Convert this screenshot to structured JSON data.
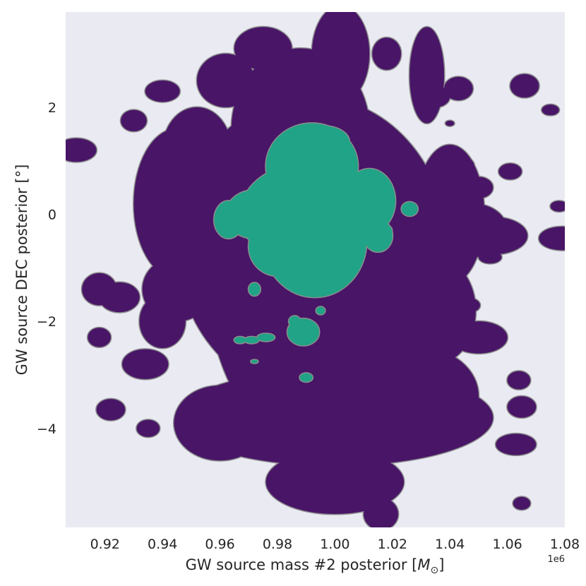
{
  "chart_data": {
    "type": "contour",
    "xlabel": "GW source mass #2 posterior [",
    "xlabel_math": "M",
    "xlabel_sub": "⊙",
    "xlabel_end": "]",
    "ylabel": "GW source DEC posterior [°]",
    "x_offset_text": "1e6",
    "xlim": [
      0.9063,
      1.08
    ],
    "ylim": [
      -5.85,
      3.78
    ],
    "x_scale_factor": 1000000,
    "x_ticks": [
      0.92,
      0.94,
      0.96,
      0.98,
      1.0,
      1.02,
      1.04,
      1.06,
      1.08
    ],
    "x_tick_labels": [
      "0.92",
      "0.94",
      "0.96",
      "0.98",
      "1.00",
      "1.02",
      "1.04",
      "1.06",
      "1.08"
    ],
    "y_ticks": [
      -4,
      -2,
      0,
      2
    ],
    "y_tick_labels": [
      "−4",
      "−2",
      "0",
      "2"
    ],
    "grid": false,
    "legend": "none",
    "colors": {
      "background": "#eaeaf2",
      "outer_level": "#481567",
      "inner_level": "#20a386",
      "contour_edge": "#8c8c8c"
    },
    "levels": [
      {
        "name": "outer",
        "blobs": [
          {
            "x": 0.992,
            "y": -1.0,
            "rx": 0.037,
            "ry": 3.4
          },
          {
            "x": 0.992,
            "y": -0.6,
            "rx": 0.047,
            "ry": 2.8
          },
          {
            "x": 0.988,
            "y": 1.6,
            "rx": 0.024,
            "ry": 1.5
          },
          {
            "x": 1.002,
            "y": 3.0,
            "rx": 0.01,
            "ry": 0.9
          },
          {
            "x": 1.0,
            "y": -3.8,
            "rx": 0.055,
            "ry": 0.9
          },
          {
            "x": 0.96,
            "y": -3.9,
            "rx": 0.016,
            "ry": 0.7
          },
          {
            "x": 1.03,
            "y": -3.4,
            "rx": 0.02,
            "ry": 0.9
          },
          {
            "x": 0.945,
            "y": 0.2,
            "rx": 0.015,
            "ry": 1.4
          },
          {
            "x": 0.952,
            "y": 1.2,
            "rx": 0.012,
            "ry": 0.8
          },
          {
            "x": 0.945,
            "y": -1.4,
            "rx": 0.012,
            "ry": 0.6
          },
          {
            "x": 0.94,
            "y": -2.0,
            "rx": 0.008,
            "ry": 0.5
          },
          {
            "x": 1.04,
            "y": 0.0,
            "rx": 0.012,
            "ry": 1.3
          },
          {
            "x": 1.048,
            "y": -0.3,
            "rx": 0.012,
            "ry": 0.5
          },
          {
            "x": 1.055,
            "y": -0.4,
            "rx": 0.012,
            "ry": 0.35
          },
          {
            "x": 1.035,
            "y": -1.8,
            "rx": 0.014,
            "ry": 1.0
          },
          {
            "x": 1.032,
            "y": 2.6,
            "rx": 0.006,
            "ry": 0.9
          },
          {
            "x": 0.962,
            "y": 2.5,
            "rx": 0.01,
            "ry": 0.5
          },
          {
            "x": 0.975,
            "y": 3.1,
            "rx": 0.01,
            "ry": 0.4
          },
          {
            "x": 1.0,
            "y": -5.0,
            "rx": 0.024,
            "ry": 0.6
          },
          {
            "x": 0.925,
            "y": -1.55,
            "rx": 0.007,
            "ry": 0.28
          },
          {
            "x": 0.918,
            "y": -1.4,
            "rx": 0.006,
            "ry": 0.3
          },
          {
            "x": 0.93,
            "y": 1.75,
            "rx": 0.0045,
            "ry": 0.2
          },
          {
            "x": 0.91,
            "y": 1.2,
            "rx": 0.007,
            "ry": 0.22
          },
          {
            "x": 0.94,
            "y": 2.3,
            "rx": 0.006,
            "ry": 0.2
          },
          {
            "x": 0.934,
            "y": -2.8,
            "rx": 0.008,
            "ry": 0.28
          },
          {
            "x": 0.918,
            "y": -2.3,
            "rx": 0.004,
            "ry": 0.18
          },
          {
            "x": 0.922,
            "y": -3.65,
            "rx": 0.005,
            "ry": 0.2
          },
          {
            "x": 0.935,
            "y": -4.0,
            "rx": 0.004,
            "ry": 0.16
          },
          {
            "x": 1.043,
            "y": 2.35,
            "rx": 0.005,
            "ry": 0.22
          },
          {
            "x": 1.035,
            "y": 2.2,
            "rx": 0.005,
            "ry": 0.2
          },
          {
            "x": 1.044,
            "y": 0.9,
            "rx": 0.0045,
            "ry": 0.18
          },
          {
            "x": 1.05,
            "y": 0.5,
            "rx": 0.005,
            "ry": 0.2
          },
          {
            "x": 1.061,
            "y": 0.8,
            "rx": 0.004,
            "ry": 0.15
          },
          {
            "x": 1.079,
            "y": -0.45,
            "rx": 0.008,
            "ry": 0.22
          },
          {
            "x": 1.078,
            "y": 0.15,
            "rx": 0.003,
            "ry": 0.1
          },
          {
            "x": 1.075,
            "y": 1.95,
            "rx": 0.003,
            "ry": 0.1
          },
          {
            "x": 1.066,
            "y": 2.4,
            "rx": 0.005,
            "ry": 0.22
          },
          {
            "x": 1.04,
            "y": 1.7,
            "rx": 0.0015,
            "ry": 0.05
          },
          {
            "x": 1.05,
            "y": -2.3,
            "rx": 0.01,
            "ry": 0.3
          },
          {
            "x": 1.054,
            "y": -0.8,
            "rx": 0.004,
            "ry": 0.12
          },
          {
            "x": 1.047,
            "y": -1.7,
            "rx": 0.0035,
            "ry": 0.13
          },
          {
            "x": 1.064,
            "y": -3.1,
            "rx": 0.004,
            "ry": 0.17
          },
          {
            "x": 1.065,
            "y": -3.6,
            "rx": 0.005,
            "ry": 0.2
          },
          {
            "x": 1.063,
            "y": -4.3,
            "rx": 0.007,
            "ry": 0.2
          },
          {
            "x": 1.065,
            "y": -5.4,
            "rx": 0.003,
            "ry": 0.12
          },
          {
            "x": 1.016,
            "y": -5.6,
            "rx": 0.006,
            "ry": 0.3
          },
          {
            "x": 1.018,
            "y": 3.0,
            "rx": 0.005,
            "ry": 0.3
          },
          {
            "x": 1.004,
            "y": 3.4,
            "rx": 0.006,
            "ry": 0.4
          }
        ]
      },
      {
        "name": "inner",
        "blobs": [
          {
            "x": 0.99,
            "y": 0.0,
            "rx": 0.023,
            "ry": 0.95
          },
          {
            "x": 0.993,
            "y": -0.5,
            "rx": 0.018,
            "ry": 1.05
          },
          {
            "x": 0.992,
            "y": 0.9,
            "rx": 0.016,
            "ry": 0.8
          },
          {
            "x": 0.996,
            "y": 1.35,
            "rx": 0.009,
            "ry": 0.3
          },
          {
            "x": 1.012,
            "y": 0.25,
            "rx": 0.009,
            "ry": 0.6
          },
          {
            "x": 0.972,
            "y": 0.0,
            "rx": 0.01,
            "ry": 0.45
          },
          {
            "x": 0.98,
            "y": -0.6,
            "rx": 0.01,
            "ry": 0.55
          },
          {
            "x": 1.015,
            "y": -0.4,
            "rx": 0.005,
            "ry": 0.3
          },
          {
            "x": 0.963,
            "y": -0.1,
            "rx": 0.005,
            "ry": 0.35
          },
          {
            "x": 1.026,
            "y": 0.1,
            "rx": 0.0028,
            "ry": 0.13
          },
          {
            "x": 1.018,
            "y": -0.3,
            "rx": 0.0018,
            "ry": 0.09
          },
          {
            "x": 0.989,
            "y": -2.2,
            "rx": 0.0055,
            "ry": 0.25
          },
          {
            "x": 0.986,
            "y": -2.0,
            "rx": 0.002,
            "ry": 0.1
          },
          {
            "x": 0.976,
            "y": -2.3,
            "rx": 0.003,
            "ry": 0.07
          },
          {
            "x": 0.971,
            "y": -2.35,
            "rx": 0.0025,
            "ry": 0.06
          },
          {
            "x": 0.967,
            "y": -2.35,
            "rx": 0.002,
            "ry": 0.06
          },
          {
            "x": 0.972,
            "y": -1.4,
            "rx": 0.002,
            "ry": 0.12
          },
          {
            "x": 0.995,
            "y": -1.8,
            "rx": 0.0015,
            "ry": 0.07
          },
          {
            "x": 0.99,
            "y": -3.05,
            "rx": 0.0022,
            "ry": 0.08
          },
          {
            "x": 0.972,
            "y": -2.75,
            "rx": 0.0012,
            "ry": 0.03
          }
        ]
      }
    ]
  }
}
